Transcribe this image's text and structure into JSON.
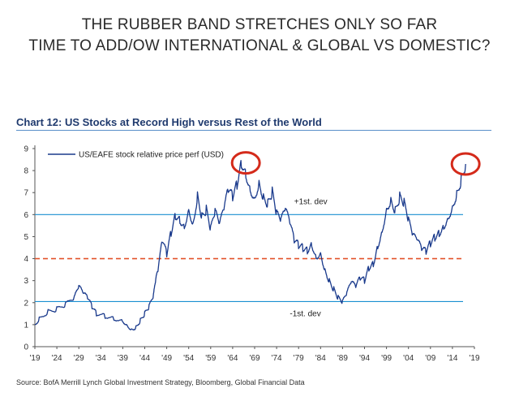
{
  "slide": {
    "headline_line1": "THE RUBBER BAND STRETCHES ONLY SO FAR",
    "headline_line2": "TIME TO ADD/OW INTERNATIONAL & GLOBAL VS DOMESTIC?"
  },
  "chart_data": {
    "type": "line",
    "title": "Chart 12: US Stocks at Record High versus Rest of the World",
    "source": "Source: BofA Merrill Lynch Global Investment Strategy, Bloomberg, Global Financial Data",
    "xlabel": "",
    "ylabel": "",
    "ylim": [
      0,
      9
    ],
    "xlim": [
      1919,
      2019
    ],
    "y_ticks": [
      0,
      1,
      2,
      3,
      4,
      5,
      6,
      7,
      8,
      9
    ],
    "x_tick_labels": [
      "'19",
      "'24",
      "'29",
      "'34",
      "'39",
      "'44",
      "'49",
      "'54",
      "'59",
      "'64",
      "'69",
      "'74",
      "'79",
      "'84",
      "'89",
      "'94",
      "'99",
      "'04",
      "'09",
      "'14",
      "'19"
    ],
    "legend": {
      "label": "US/EAFE stock relative price perf (USD)",
      "placement": "top-left"
    },
    "series": [
      {
        "name": "US/EAFE stock relative price perf (USD)",
        "color": "#1a3a8c",
        "x": [
          1919,
          1920,
          1922,
          1924,
          1926,
          1928,
          1929,
          1930,
          1931,
          1932,
          1933,
          1935,
          1937,
          1939,
          1940,
          1941,
          1942,
          1943,
          1944,
          1945,
          1946,
          1946.5,
          1947,
          1948,
          1949,
          1950,
          1951,
          1952,
          1953,
          1954,
          1955,
          1956,
          1957,
          1958,
          1959,
          1960,
          1961,
          1962,
          1963,
          1964,
          1965,
          1966,
          1967,
          1968,
          1969,
          1970,
          1971,
          1972,
          1973,
          1974,
          1975,
          1976,
          1977,
          1978,
          1979,
          1980,
          1981,
          1982,
          1983,
          1984,
          1985,
          1986,
          1987,
          1988,
          1989,
          1990,
          1991,
          1992,
          1993,
          1994,
          1995,
          1996,
          1997,
          1998,
          1999,
          2000,
          2001,
          2002,
          2003,
          2004,
          2005,
          2006,
          2007,
          2008,
          2009,
          2010,
          2011,
          2012,
          2013,
          2014,
          2015,
          2016,
          2017
        ],
        "values": [
          1.0,
          1.3,
          1.6,
          1.7,
          1.9,
          2.2,
          2.7,
          2.4,
          2.2,
          1.8,
          1.5,
          1.4,
          1.3,
          1.2,
          1.0,
          0.8,
          0.9,
          1.2,
          1.5,
          1.8,
          2.3,
          3.0,
          3.4,
          4.8,
          4.2,
          5.2,
          6.0,
          5.8,
          5.5,
          6.3,
          5.6,
          6.9,
          5.9,
          6.2,
          5.3,
          6.1,
          5.5,
          6.2,
          7.1,
          6.8,
          7.4,
          8.4,
          7.9,
          7.2,
          6.8,
          7.5,
          6.8,
          6.5,
          7.0,
          6.0,
          5.7,
          6.2,
          5.6,
          4.8,
          4.6,
          4.5,
          4.4,
          4.7,
          4.1,
          4.3,
          3.5,
          3.0,
          2.6,
          2.2,
          2.0,
          2.4,
          2.9,
          2.7,
          3.1,
          3.0,
          3.6,
          3.8,
          4.6,
          5.3,
          6.3,
          6.7,
          6.2,
          6.8,
          6.5,
          5.7,
          5.0,
          4.8,
          4.4,
          4.3,
          4.7,
          5.0,
          5.2,
          5.5,
          5.9,
          6.4,
          7.0,
          7.6,
          8.3
        ]
      }
    ],
    "reference_lines": [
      {
        "label": "+1st. dev",
        "value": 6.0,
        "color": "#1a8fd1",
        "style": "solid"
      },
      {
        "label": "",
        "value": 4.0,
        "color": "#e3542b",
        "style": "dashed"
      },
      {
        "label": "-1st. dev",
        "value": 2.05,
        "color": "#1a8fd1",
        "style": "solid"
      }
    ],
    "annotations": [
      {
        "type": "circle",
        "x": 1967,
        "y": 8.35,
        "color": "#d42a1a"
      },
      {
        "type": "circle",
        "x": 2017,
        "y": 8.3,
        "color": "#d42a1a"
      }
    ]
  }
}
